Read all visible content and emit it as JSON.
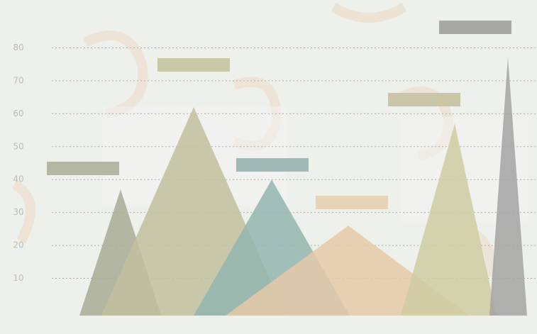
{
  "chart_data": {
    "type": "triangle",
    "categories": [
      null,
      null,
      null,
      null,
      null,
      null
    ],
    "values": [
      37,
      62,
      40,
      26,
      57,
      77
    ],
    "colors": [
      "#a8ab97",
      "#c2bf9e",
      "#93b5b0",
      "#e5c9a8",
      "#cfcca2",
      "#a3a3a3"
    ],
    "label_box_colors": [
      "#b4b7a3",
      "#c9c9a8",
      "#9fbab6",
      "#e6d3b8",
      "#c9c5a6",
      "#a8a8a6"
    ],
    "ylim": [
      0,
      90
    ],
    "yticks": [
      10,
      20,
      30,
      40,
      50,
      60,
      70,
      80
    ],
    "grid": true
  }
}
